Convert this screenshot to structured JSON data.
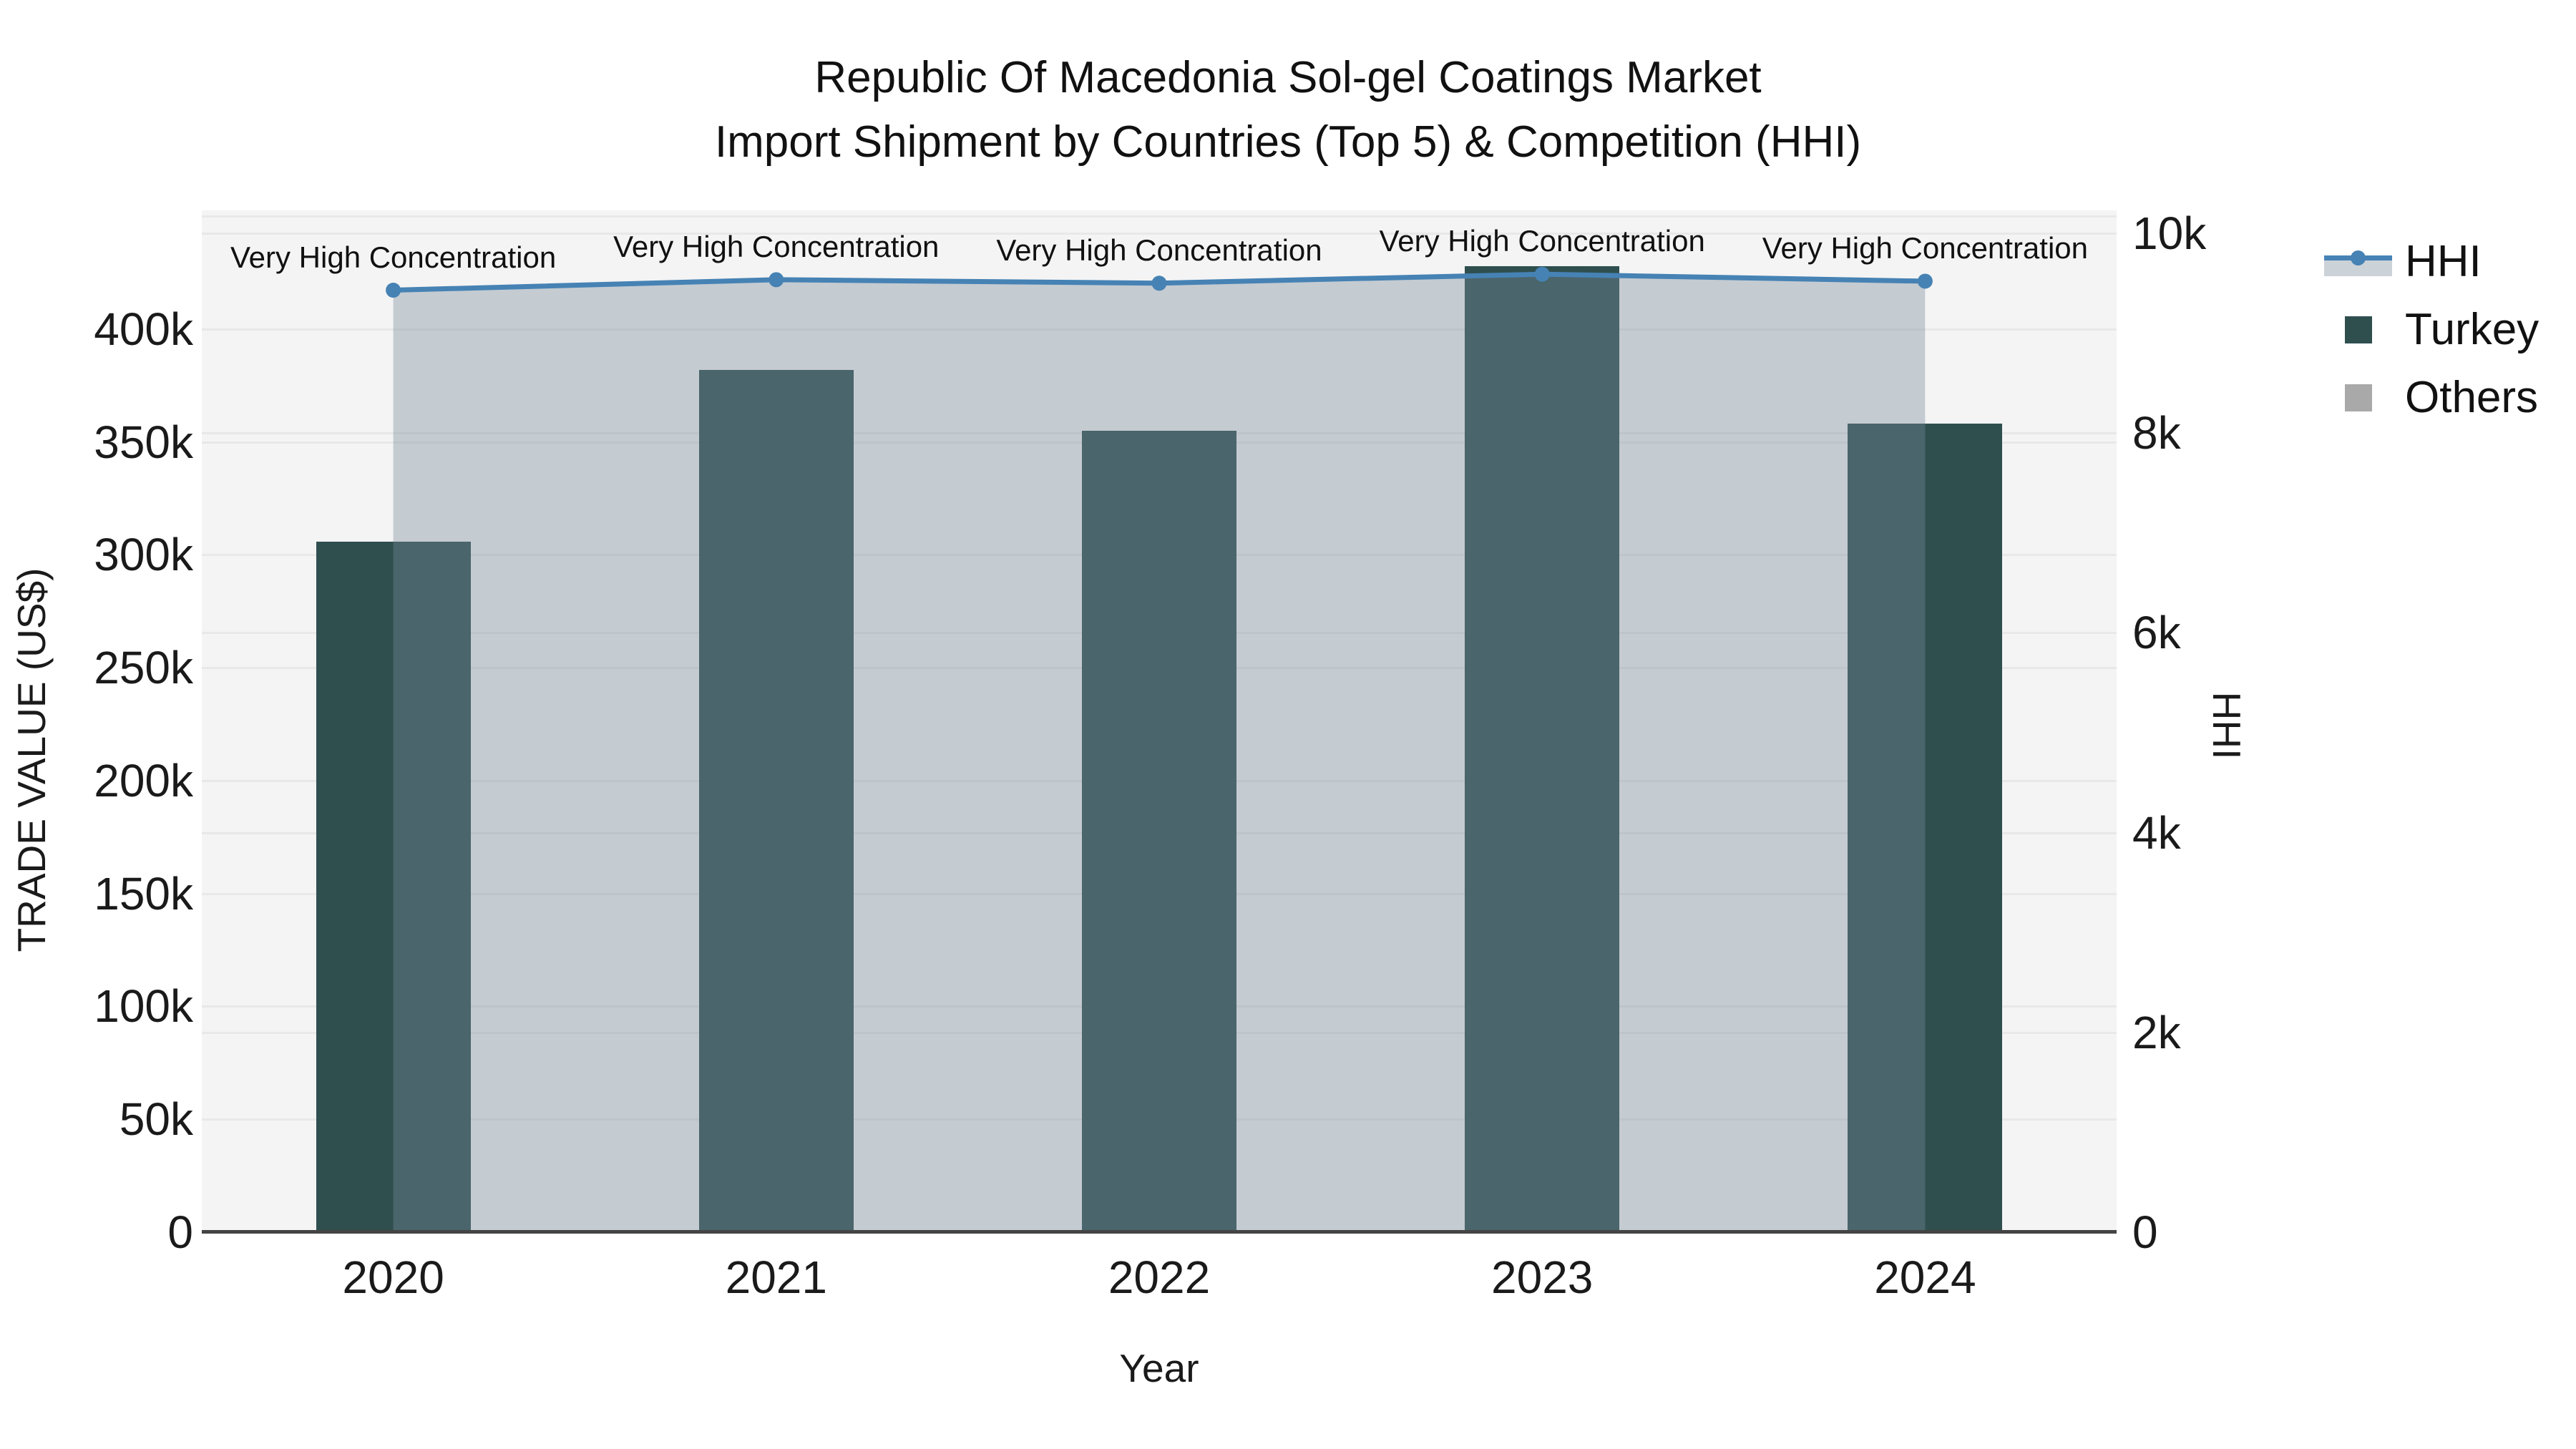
{
  "title": {
    "line1": "Republic Of Macedonia Sol-gel Coatings Market",
    "line2": "Import Shipment by Countries (Top 5) & Competition (HHI)"
  },
  "legend": {
    "items": [
      {
        "label": "HHI",
        "swatch": "line-marker-area"
      },
      {
        "label": "Turkey",
        "swatch": "square"
      },
      {
        "label": "Others",
        "swatch": "square"
      }
    ]
  },
  "colors": {
    "turkey_bar": "#2F4F4F",
    "others": "#A9A9A9",
    "hhi_line": "#4682B4",
    "hhi_area_fill": "rgba(119,136,153,0.38)",
    "plot_background": "#F4F4F4",
    "gridline": "#E8E8E8",
    "axis_line": "#444444"
  },
  "chart_data": {
    "type": "combo (bar + line with area fill, dual y-axis)",
    "categories": [
      "2020",
      "2021",
      "2022",
      "2023",
      "2024"
    ],
    "series": [
      {
        "name": "Turkey",
        "type": "bar",
        "yaxis": "left",
        "color": "#2F4F4F",
        "values": [
          306000,
          382000,
          355000,
          428000,
          358000
        ]
      },
      {
        "name": "Others",
        "type": "bar",
        "yaxis": "left",
        "color": "#A9A9A9",
        "values": [
          null,
          null,
          null,
          null,
          null
        ]
      },
      {
        "name": "HHI",
        "type": "line+area",
        "yaxis": "right",
        "color": "#4682B4",
        "fill_color": "rgba(119,136,153,0.38)",
        "values": [
          9430,
          9535,
          9500,
          9590,
          9520
        ]
      }
    ],
    "annotations": [
      {
        "text": "Very High Concentration",
        "category": "2020"
      },
      {
        "text": "Very High Concentration",
        "category": "2021"
      },
      {
        "text": "Very High Concentration",
        "category": "2022"
      },
      {
        "text": "Very High Concentration",
        "category": "2023"
      },
      {
        "text": "Very High Concentration",
        "category": "2024"
      }
    ],
    "axes": {
      "x": {
        "title": "Year",
        "tick_labels": [
          "2020",
          "2021",
          "2022",
          "2023",
          "2024"
        ]
      },
      "left": {
        "title": "TRADE VALUE (US$)",
        "ticks": [
          {
            "label": "0",
            "value": 0
          },
          {
            "label": "50k",
            "value": 50000
          },
          {
            "label": "100k",
            "value": 100000
          },
          {
            "label": "150k",
            "value": 150000
          },
          {
            "label": "200k",
            "value": 200000
          },
          {
            "label": "250k",
            "value": 250000
          },
          {
            "label": "300k",
            "value": 300000
          },
          {
            "label": "350k",
            "value": 350000
          },
          {
            "label": "400k",
            "value": 400000
          }
        ],
        "grid_values": [
          50000,
          100000,
          150000,
          200000,
          250000,
          300000,
          350000,
          400000,
          450000
        ],
        "range": [
          0,
          452600
        ]
      },
      "right": {
        "title": "HHI",
        "ticks": [
          {
            "label": "0",
            "value": 0
          },
          {
            "label": "2k",
            "value": 2000
          },
          {
            "label": "4k",
            "value": 4000
          },
          {
            "label": "6k",
            "value": 6000
          },
          {
            "label": "8k",
            "value": 8000
          },
          {
            "label": "10k",
            "value": 10000
          }
        ],
        "grid_values": [
          2000,
          4000,
          6000,
          8000,
          10000
        ],
        "range": [
          0,
          10229
        ]
      }
    },
    "grid": true,
    "legend_position": "right"
  }
}
